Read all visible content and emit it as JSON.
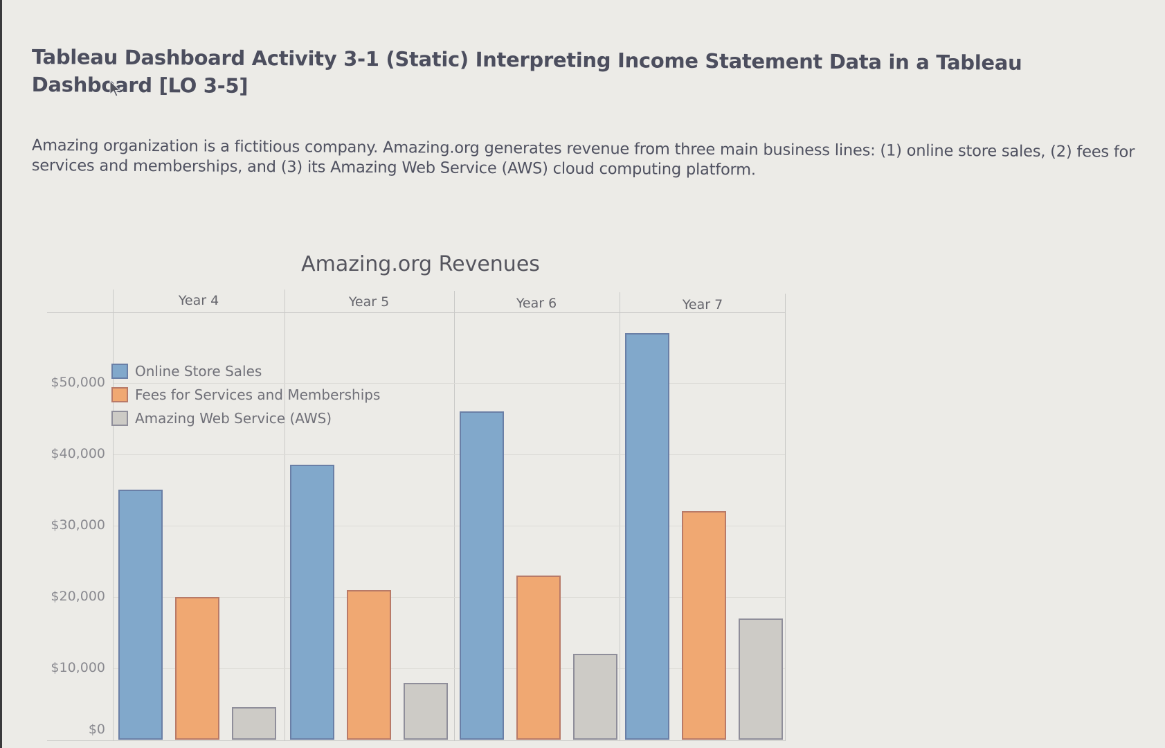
{
  "page": {
    "title": "Tableau Dashboard Activity 3-1 (Static) Interpreting Income Statement Data in a Tableau Dashboard [LO 3-5]",
    "intro": "Amazing organization is a fictitious company. Amazing.org generates revenue from three main business lines: (1) online store sales, (2) fees for services and memberships, and (3) its Amazing Web Service (AWS) cloud computing platform."
  },
  "colors": {
    "online": "#81a8cb",
    "online_border": "#6a7fa6",
    "fees": "#f0a872",
    "fees_border": "#b87a68",
    "aws": "#cdcbc6",
    "aws_border": "#8f8e9a"
  },
  "chart_data": {
    "type": "bar",
    "title": "Amazing.org Revenues",
    "xlabel": "",
    "ylabel": "",
    "categories": [
      "Year 4",
      "Year 5",
      "Year 6",
      "Year 7"
    ],
    "series": [
      {
        "name": "Online Store Sales",
        "values": [
          35000,
          38500,
          46000,
          57000
        ]
      },
      {
        "name": "Fees for Services and Memberships",
        "values": [
          20000,
          21000,
          23000,
          32000
        ]
      },
      {
        "name": "Amazing Web Service (AWS)",
        "values": [
          4600,
          8000,
          12000,
          17000
        ]
      }
    ],
    "yticks": [
      "$0",
      "$10,000",
      "$20,000",
      "$30,000",
      "$40,000",
      "$50,000"
    ],
    "ylim": [
      0,
      58000
    ],
    "grid": true,
    "legend_position": "top-left inside plot"
  },
  "legend": {
    "items": [
      {
        "label": "Online Store Sales"
      },
      {
        "label": "Fees for Services and Memberships"
      },
      {
        "label": "Amazing Web Service (AWS)"
      }
    ]
  }
}
